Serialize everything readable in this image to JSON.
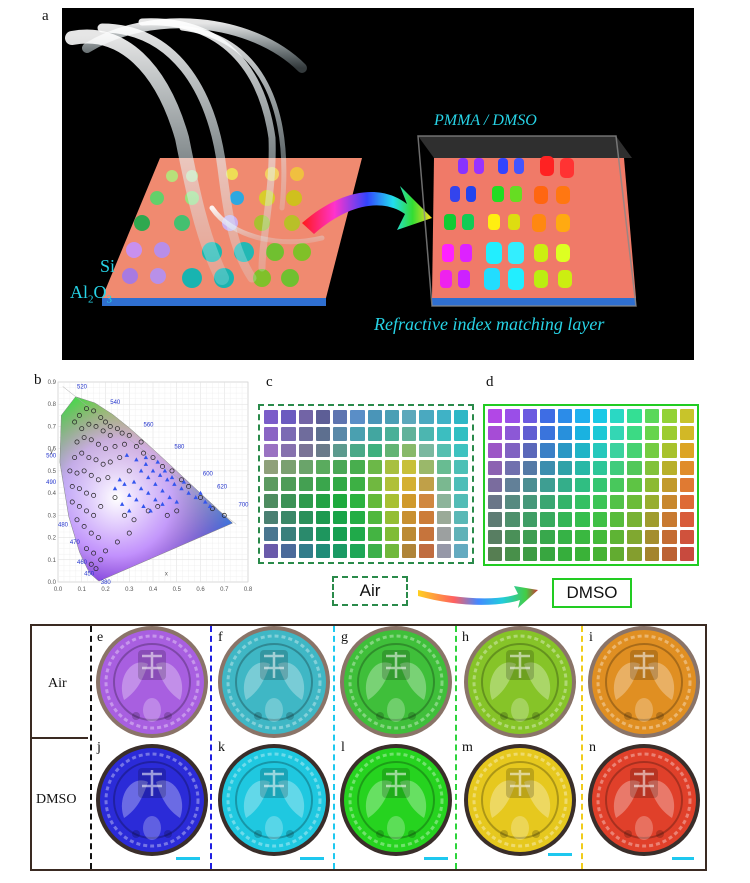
{
  "panel_labels": {
    "a": "a",
    "b": "b",
    "c": "c",
    "d": "d",
    "e": "e",
    "f": "f",
    "g": "g",
    "h": "h",
    "i": "i",
    "j": "j",
    "k": "k",
    "l": "l",
    "m": "m",
    "n": "n"
  },
  "panel_a": {
    "layer_si": "Si",
    "layer_al": "Al",
    "layer_al_sub": "2",
    "layer_o": "O",
    "layer_o_sub": "3",
    "solution_label": "PMMA / DMSO",
    "matching_layer_label": "Refractive index matching layer"
  },
  "chart_data": {
    "type": "scatter",
    "title": "",
    "xlabel": "x",
    "ylabel": "y",
    "xlim": [
      0.0,
      0.8
    ],
    "ylim": [
      0.0,
      0.9
    ],
    "x_ticks": [
      "0.0",
      "0.1",
      "0.2",
      "0.3",
      "0.4",
      "0.5",
      "0.6",
      "0.7",
      "0.8"
    ],
    "y_ticks": [
      "0.0",
      "0.1",
      "0.2",
      "0.3",
      "0.4",
      "0.5",
      "0.6",
      "0.7",
      "0.8",
      "0.9"
    ],
    "wavelength_labels": [
      "520",
      "540",
      "560",
      "580",
      "600",
      "620",
      "700",
      "500",
      "490",
      "480",
      "470",
      "460",
      "450",
      "380"
    ],
    "series": [
      {
        "values": [
          [
            0.07,
            0.72
          ],
          [
            0.09,
            0.75
          ],
          [
            0.12,
            0.78
          ],
          [
            0.15,
            0.77
          ],
          [
            0.18,
            0.74
          ],
          [
            0.2,
            0.72
          ],
          [
            0.22,
            0.7
          ],
          [
            0.25,
            0.69
          ],
          [
            0.27,
            0.67
          ],
          [
            0.1,
            0.69
          ],
          [
            0.13,
            0.71
          ],
          [
            0.16,
            0.7
          ],
          [
            0.19,
            0.68
          ],
          [
            0.22,
            0.66
          ],
          [
            0.08,
            0.63
          ],
          [
            0.11,
            0.65
          ],
          [
            0.14,
            0.64
          ],
          [
            0.17,
            0.62
          ],
          [
            0.2,
            0.6
          ],
          [
            0.24,
            0.61
          ],
          [
            0.28,
            0.62
          ],
          [
            0.07,
            0.56
          ],
          [
            0.1,
            0.58
          ],
          [
            0.13,
            0.56
          ],
          [
            0.16,
            0.55
          ],
          [
            0.19,
            0.53
          ],
          [
            0.05,
            0.5
          ],
          [
            0.08,
            0.49
          ],
          [
            0.11,
            0.5
          ],
          [
            0.14,
            0.48
          ],
          [
            0.17,
            0.46
          ],
          [
            0.21,
            0.47
          ],
          [
            0.06,
            0.43
          ],
          [
            0.09,
            0.42
          ],
          [
            0.12,
            0.4
          ],
          [
            0.15,
            0.39
          ],
          [
            0.06,
            0.36
          ],
          [
            0.09,
            0.34
          ],
          [
            0.12,
            0.32
          ],
          [
            0.15,
            0.3
          ],
          [
            0.08,
            0.28
          ],
          [
            0.11,
            0.25
          ],
          [
            0.14,
            0.22
          ],
          [
            0.17,
            0.2
          ],
          [
            0.12,
            0.15
          ],
          [
            0.15,
            0.13
          ],
          [
            0.14,
            0.08
          ],
          [
            0.16,
            0.06
          ],
          [
            0.18,
            0.1
          ],
          [
            0.2,
            0.14
          ],
          [
            0.25,
            0.18
          ],
          [
            0.3,
            0.22
          ],
          [
            0.32,
            0.28
          ],
          [
            0.28,
            0.3
          ],
          [
            0.38,
            0.32
          ],
          [
            0.42,
            0.34
          ],
          [
            0.46,
            0.3
          ],
          [
            0.5,
            0.32
          ],
          [
            0.36,
            0.58
          ],
          [
            0.4,
            0.56
          ],
          [
            0.44,
            0.52
          ],
          [
            0.48,
            0.5
          ],
          [
            0.52,
            0.46
          ],
          [
            0.55,
            0.43
          ],
          [
            0.6,
            0.38
          ],
          [
            0.65,
            0.33
          ],
          [
            0.7,
            0.3
          ],
          [
            0.35,
            0.63
          ],
          [
            0.3,
            0.66
          ],
          [
            0.33,
            0.61
          ],
          [
            0.26,
            0.56
          ],
          [
            0.22,
            0.54
          ],
          [
            0.3,
            0.5
          ],
          [
            0.24,
            0.38
          ],
          [
            0.18,
            0.34
          ]
        ]
      },
      {
        "values": [
          [
            0.29,
            0.57
          ],
          [
            0.33,
            0.55
          ],
          [
            0.37,
            0.53
          ],
          [
            0.4,
            0.5
          ],
          [
            0.43,
            0.48
          ],
          [
            0.46,
            0.46
          ],
          [
            0.49,
            0.44
          ],
          [
            0.52,
            0.42
          ],
          [
            0.55,
            0.4
          ],
          [
            0.58,
            0.38
          ],
          [
            0.35,
            0.5
          ],
          [
            0.38,
            0.47
          ],
          [
            0.41,
            0.44
          ],
          [
            0.44,
            0.41
          ],
          [
            0.47,
            0.38
          ],
          [
            0.5,
            0.36
          ],
          [
            0.32,
            0.45
          ],
          [
            0.35,
            0.42
          ],
          [
            0.38,
            0.4
          ],
          [
            0.41,
            0.37
          ],
          [
            0.44,
            0.35
          ],
          [
            0.3,
            0.39
          ],
          [
            0.33,
            0.37
          ],
          [
            0.36,
            0.34
          ],
          [
            0.39,
            0.32
          ],
          [
            0.27,
            0.35
          ],
          [
            0.3,
            0.32
          ],
          [
            0.26,
            0.46
          ],
          [
            0.24,
            0.42
          ],
          [
            0.28,
            0.44
          ],
          [
            0.62,
            0.36
          ],
          [
            0.64,
            0.34
          ],
          [
            0.6,
            0.4
          ],
          [
            0.45,
            0.5
          ],
          [
            0.48,
            0.47
          ],
          [
            0.53,
            0.45
          ],
          [
            0.37,
            0.56
          ],
          [
            0.42,
            0.54
          ]
        ]
      }
    ]
  },
  "grid_c": {
    "rows": 9,
    "cols": 12,
    "colors": [
      "#7b5cc9",
      "#6b5bc0",
      "#7264a6",
      "#5d5e96",
      "#5e75b0",
      "#5a8ec7",
      "#4a95b8",
      "#4a9fb5",
      "#5ca8bb",
      "#4aa9c0",
      "#3fb2c6",
      "#2eb7c6",
      "#8a64c4",
      "#7b6bb4",
      "#6f6c9c",
      "#5d6f8f",
      "#5a89a8",
      "#4aa0b0",
      "#42a6a0",
      "#4ab098",
      "#62b29a",
      "#4cb6b0",
      "#3cbec0",
      "#30bfc2",
      "#9a72c2",
      "#8671ae",
      "#7a7496",
      "#6a7b8a",
      "#5c9a8e",
      "#4aa988",
      "#3eb07e",
      "#62b474",
      "#88b96a",
      "#7ab8a0",
      "#55bfb0",
      "#3ec2c0",
      "#8fa07a",
      "#7aa070",
      "#6aa46a",
      "#5aab5e",
      "#4aa856",
      "#48ae4e",
      "#6cb848",
      "#a8c040",
      "#c8c03a",
      "#9ab86a",
      "#68bc92",
      "#4cc0b6",
      "#5c9a60",
      "#4e9c58",
      "#44a052",
      "#3aa64c",
      "#32aa46",
      "#3db044",
      "#70b840",
      "#b0c038",
      "#d4b032",
      "#c0a048",
      "#7ab890",
      "#4cbeb8",
      "#4e8c60",
      "#3c9256",
      "#2e9a4c",
      "#24a244",
      "#1eaa3e",
      "#2cb23e",
      "#64ba3a",
      "#a8c032",
      "#d09a2c",
      "#d08840",
      "#8cb49a",
      "#52bcb6",
      "#4a8072",
      "#3a8868",
      "#2a905a",
      "#1e9a50",
      "#1aa448",
      "#24ae44",
      "#50b83e",
      "#94be34",
      "#c89030",
      "#cc7c38",
      "#9aaa98",
      "#5ab8b6",
      "#4a7690",
      "#3a807c",
      "#2a8a6c",
      "#1e965e",
      "#18a052",
      "#20aa4a",
      "#44b442",
      "#80bc36",
      "#bc8a34",
      "#c6743c",
      "#9ca0a0",
      "#60b2b8",
      "#6a5aaa",
      "#4a6a9a",
      "#327c8a",
      "#208c78",
      "#1a9a64",
      "#1ea656",
      "#3cb04a",
      "#70b83c",
      "#b08438",
      "#c06c40",
      "#9698a8",
      "#64aac0"
    ]
  },
  "grid_d": {
    "rows": 9,
    "cols": 12,
    "colors": [
      "#b247e6",
      "#9a4ee8",
      "#6b5ae0",
      "#3e6de4",
      "#2c8ce8",
      "#1fb0ee",
      "#19c9e6",
      "#2ad8c4",
      "#34df94",
      "#5ad85a",
      "#92d236",
      "#c8c42a",
      "#a64cd6",
      "#8c58d6",
      "#605ed2",
      "#3a74dc",
      "#2890dc",
      "#1ab2e0",
      "#1ec8d6",
      "#34d6b4",
      "#3cda84",
      "#66d44c",
      "#9ccc30",
      "#d2b826",
      "#9c56c6",
      "#8062c2",
      "#5a68ba",
      "#3a80c6",
      "#2a98c4",
      "#20b4c6",
      "#26c8bc",
      "#3cd29e",
      "#46d272",
      "#74cc42",
      "#a8c22c",
      "#dca424",
      "#8c62b2",
      "#7070ae",
      "#547aa6",
      "#3c8eae",
      "#30a2a8",
      "#28b8a6",
      "#2ec698",
      "#40cc7c",
      "#52c85a",
      "#82c23a",
      "#b8b02a",
      "#e08c2a",
      "#7a6c9e",
      "#628098",
      "#4c8e92",
      "#3e9e92",
      "#34ae8a",
      "#30be82",
      "#36c672",
      "#48c85c",
      "#5ec444",
      "#8cba32",
      "#c29a2c",
      "#e07a32",
      "#6a7688",
      "#568a80",
      "#46987a",
      "#3aa672",
      "#34b46a",
      "#34c062",
      "#3cc456",
      "#52c248",
      "#6cbc38",
      "#98ae30",
      "#c8882e",
      "#de6a36",
      "#5e7c74",
      "#4e906c",
      "#409e66",
      "#38aa5e",
      "#34b656",
      "#36be4e",
      "#40c046",
      "#58bc3c",
      "#78b234",
      "#a09c2e",
      "#c87a30",
      "#d85c3a",
      "#587e62",
      "#4a9058",
      "#3e9e52",
      "#38a84c",
      "#36b246",
      "#3ab840",
      "#44ba3a",
      "#5eb434",
      "#80a830",
      "#a48e2e",
      "#c46c32",
      "#d0523c",
      "#567e52",
      "#48904a",
      "#3e9c44",
      "#38a640",
      "#36ae3c",
      "#3ab238",
      "#46b234",
      "#62ac30",
      "#849e2e",
      "#a4842e",
      "#bc6234",
      "#c84a3e"
    ]
  },
  "caption_air": "Air",
  "caption_dmso": "DMSO",
  "row_air": "Air",
  "row_dmso": "DMSO",
  "coins_air": [
    "#a85fe0",
    "#3fb7c5",
    "#3fbf3a",
    "#86c428",
    "#e08f22"
  ],
  "coins_dmso": [
    "#2b2bd8",
    "#1fc8e0",
    "#26d31f",
    "#e6c81e",
    "#e0402a"
  ],
  "dash_colors": [
    "#111111",
    "#1f1fe0",
    "#1ec8ef",
    "#2bd43a",
    "#f0cc1a"
  ],
  "colors": {
    "accent_cyan": "#27d3e6",
    "box_air": "#2a8a4a",
    "box_dmso": "#22cc22"
  }
}
